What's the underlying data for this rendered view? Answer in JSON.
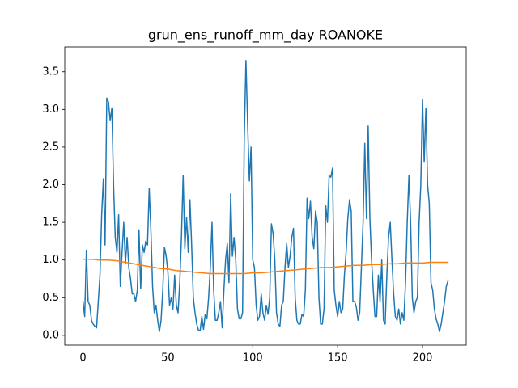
{
  "chart_data": {
    "type": "line",
    "title": "grun_ens_runoff_mm_day ROANOKE",
    "xlim": [
      -10.75,
      225.75
    ],
    "xticks": [
      0,
      50,
      100,
      150,
      200
    ],
    "ylim": [
      -0.13,
      3.83
    ],
    "yticks": [
      {
        "value": 0,
        "label": "0.0"
      },
      0.5,
      {
        "value": 1,
        "label": "1.0"
      },
      1.5,
      {
        "value": 2,
        "label": "2.0"
      },
      2.5,
      {
        "value": 3,
        "label": "3.0"
      },
      3.5
    ],
    "grid": false,
    "series": [
      {
        "color": "#1f77b4",
        "x": [
          0,
          1,
          2,
          3,
          4,
          5,
          6,
          7,
          8,
          9,
          10,
          11,
          12,
          13,
          14,
          15,
          16,
          17,
          18,
          19,
          20,
          21,
          22,
          23,
          24,
          25,
          26,
          27,
          28,
          29,
          30,
          31,
          32,
          33,
          34,
          35,
          36,
          37,
          38,
          39,
          40,
          41,
          42,
          43,
          44,
          45,
          46,
          47,
          48,
          49,
          50,
          51,
          52,
          53,
          54,
          55,
          56,
          57,
          58,
          59,
          60,
          61,
          62,
          63,
          64,
          65,
          66,
          67,
          68,
          69,
          70,
          71,
          72,
          73,
          74,
          75,
          76,
          77,
          78,
          79,
          80,
          81,
          82,
          83,
          84,
          85,
          86,
          87,
          88,
          89,
          90,
          91,
          92,
          93,
          94,
          95,
          96,
          97,
          98,
          99,
          100,
          101,
          102,
          103,
          104,
          105,
          106,
          107,
          108,
          109,
          110,
          111,
          112,
          113,
          114,
          115,
          116,
          117,
          118,
          119,
          120,
          121,
          122,
          123,
          124,
          125,
          126,
          127,
          128,
          129,
          130,
          131,
          132,
          133,
          134,
          135,
          136,
          137,
          138,
          139,
          140,
          141,
          142,
          143,
          144,
          145,
          146,
          147,
          148,
          149,
          150,
          151,
          152,
          153,
          154,
          155,
          156,
          157,
          158,
          159,
          160,
          161,
          162,
          163,
          164,
          165,
          166,
          167,
          168,
          169,
          170,
          171,
          172,
          173,
          174,
          175,
          176,
          177,
          178,
          179,
          180,
          181,
          182,
          183,
          184,
          185,
          186,
          187,
          188,
          189,
          190,
          191,
          192,
          193,
          194,
          195,
          196,
          197,
          198,
          199,
          200,
          201,
          202,
          203,
          204,
          205,
          206,
          207,
          208,
          209,
          210,
          211,
          212,
          213,
          214,
          215
        ],
        "values": [
          0.45,
          0.25,
          1.13,
          0.45,
          0.4,
          0.2,
          0.15,
          0.12,
          0.1,
          0.45,
          0.8,
          1.6,
          2.08,
          1.2,
          3.15,
          3.1,
          2.85,
          3.02,
          2.0,
          1.3,
          1.1,
          1.6,
          0.65,
          1.1,
          1.5,
          0.95,
          1.3,
          0.9,
          0.75,
          0.55,
          0.55,
          0.45,
          0.6,
          1.4,
          0.62,
          1.2,
          1.1,
          1.25,
          1.2,
          1.95,
          1.4,
          0.65,
          0.3,
          0.4,
          0.2,
          0.05,
          0.2,
          0.6,
          1.17,
          1.05,
          0.85,
          0.4,
          0.5,
          0.35,
          0.8,
          0.4,
          0.3,
          0.7,
          1.3,
          2.12,
          1.15,
          1.57,
          1.1,
          1.8,
          1.2,
          0.5,
          0.3,
          0.15,
          0.07,
          0.06,
          0.25,
          0.08,
          0.28,
          0.22,
          0.5,
          0.9,
          1.5,
          0.6,
          0.2,
          0.2,
          0.3,
          0.45,
          0.1,
          0.6,
          1.0,
          1.22,
          0.7,
          1.88,
          1.05,
          1.3,
          1.0,
          0.35,
          0.22,
          0.22,
          0.3,
          2.6,
          3.65,
          2.8,
          2.05,
          2.5,
          1.0,
          0.9,
          0.4,
          0.2,
          0.25,
          0.55,
          0.3,
          0.2,
          0.4,
          0.28,
          0.5,
          1.48,
          1.35,
          1.0,
          0.3,
          0.15,
          0.12,
          0.4,
          0.45,
          0.9,
          1.22,
          0.9,
          1.05,
          1.3,
          1.42,
          0.5,
          0.2,
          0.15,
          0.15,
          0.28,
          0.25,
          0.6,
          1.82,
          1.55,
          1.78,
          1.3,
          1.15,
          1.65,
          1.5,
          0.5,
          0.15,
          0.15,
          0.35,
          1.72,
          1.5,
          2.12,
          2.1,
          2.22,
          0.6,
          0.4,
          0.25,
          0.45,
          0.3,
          0.35,
          0.8,
          1.1,
          1.55,
          1.8,
          1.65,
          0.45,
          0.45,
          0.38,
          0.2,
          0.3,
          0.9,
          1.5,
          2.55,
          1.55,
          2.78,
          1.55,
          1.0,
          0.6,
          0.25,
          0.25,
          0.8,
          0.45,
          1.0,
          0.2,
          0.15,
          0.8,
          1.3,
          1.5,
          1.0,
          0.55,
          0.25,
          0.2,
          0.35,
          0.15,
          0.3,
          0.2,
          0.7,
          1.5,
          2.12,
          1.5,
          0.5,
          0.3,
          0.45,
          0.5,
          1.5,
          2.0,
          3.13,
          2.3,
          3.02,
          2.0,
          1.75,
          0.7,
          0.6,
          0.35,
          0.22,
          0.15,
          0.05,
          0.15,
          0.3,
          0.45,
          0.65,
          0.72
        ]
      },
      {
        "color": "#ff7f0e",
        "x": [
          0,
          5,
          10,
          15,
          20,
          25,
          30,
          35,
          40,
          45,
          50,
          55,
          60,
          65,
          70,
          75,
          80,
          85,
          90,
          95,
          100,
          105,
          110,
          115,
          120,
          125,
          130,
          135,
          140,
          145,
          150,
          155,
          160,
          165,
          170,
          175,
          180,
          185,
          190,
          195,
          200,
          205,
          210,
          215
        ],
        "values": [
          1.01,
          1.01,
          1.0,
          1.0,
          0.99,
          0.97,
          0.95,
          0.93,
          0.91,
          0.89,
          0.88,
          0.86,
          0.85,
          0.84,
          0.83,
          0.82,
          0.82,
          0.82,
          0.82,
          0.82,
          0.83,
          0.83,
          0.84,
          0.85,
          0.86,
          0.87,
          0.88,
          0.89,
          0.9,
          0.9,
          0.91,
          0.92,
          0.93,
          0.93,
          0.94,
          0.94,
          0.95,
          0.95,
          0.96,
          0.96,
          0.96,
          0.97,
          0.97,
          0.97
        ]
      }
    ]
  }
}
